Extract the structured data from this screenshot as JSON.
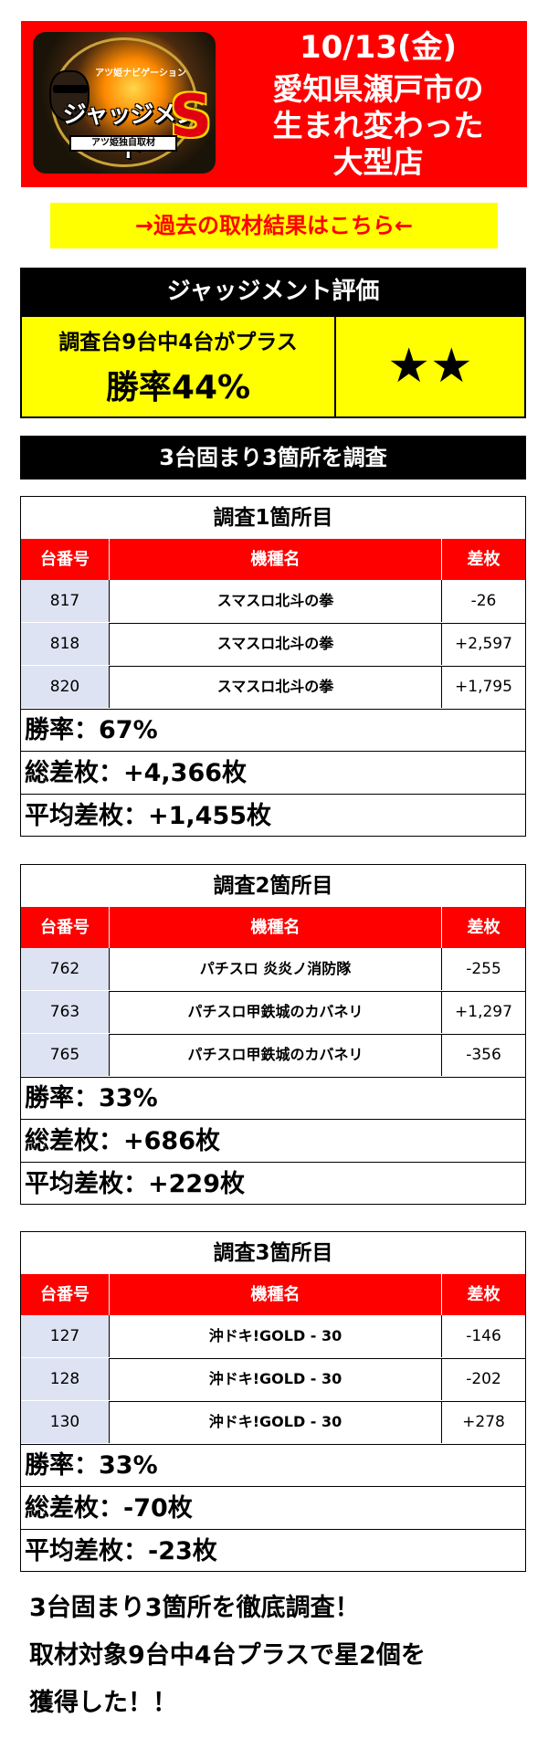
{
  "header": {
    "logo": {
      "top_text": "アツ姫ナビゲーション",
      "main_text": "ジャッジメント",
      "s_text": "S",
      "bar_text": "アツ姫独自取材"
    },
    "date": "10/13(金)",
    "lines": [
      "愛知県瀬戸市の",
      "生まれ変わった",
      "大型店"
    ]
  },
  "past_link": "→過去の取材結果はこちら←",
  "evaluation": {
    "title": "ジャッジメント評価",
    "summary": "調査台9台中4台がプラス",
    "win_rate": "勝率44%",
    "stars": "★★"
  },
  "survey_heading": "3台固まり3箇所を調査",
  "columns": [
    "台番号",
    "機種名",
    "差枚"
  ],
  "surveys": [
    {
      "title": "調査1箇所目",
      "rows": [
        {
          "num": "817",
          "model": "スマスロ北斗の拳",
          "diff": "-26"
        },
        {
          "num": "818",
          "model": "スマスロ北斗の拳",
          "diff": "+2,597"
        },
        {
          "num": "820",
          "model": "スマスロ北斗の拳",
          "diff": "+1,795"
        }
      ],
      "win_rate": "勝率：67%",
      "total": "総差枚：+4,366枚",
      "average": "平均差枚：+1,455枚"
    },
    {
      "title": "調査2箇所目",
      "rows": [
        {
          "num": "762",
          "model": "パチスロ 炎炎ノ消防隊",
          "diff": "-255"
        },
        {
          "num": "763",
          "model": "パチスロ甲鉄城のカバネリ",
          "diff": "+1,297"
        },
        {
          "num": "765",
          "model": "パチスロ甲鉄城のカバネリ",
          "diff": "-356"
        }
      ],
      "win_rate": "勝率：33%",
      "total": "総差枚：+686枚",
      "average": "平均差枚：+229枚"
    },
    {
      "title": "調査3箇所目",
      "rows": [
        {
          "num": "127",
          "model": "沖ドキ!GOLD - 30",
          "diff": "-146"
        },
        {
          "num": "128",
          "model": "沖ドキ!GOLD - 30",
          "diff": "-202"
        },
        {
          "num": "130",
          "model": "沖ドキ!GOLD - 30",
          "diff": "+278"
        }
      ],
      "win_rate": "勝率：33%",
      "total": "総差枚：-70枚",
      "average": "平均差枚：-23枚"
    }
  ],
  "footer": [
    "3台固まり3箇所を徹底調査！",
    "取材対象9台中4台プラスで星2個を",
    "獲得した！！"
  ]
}
